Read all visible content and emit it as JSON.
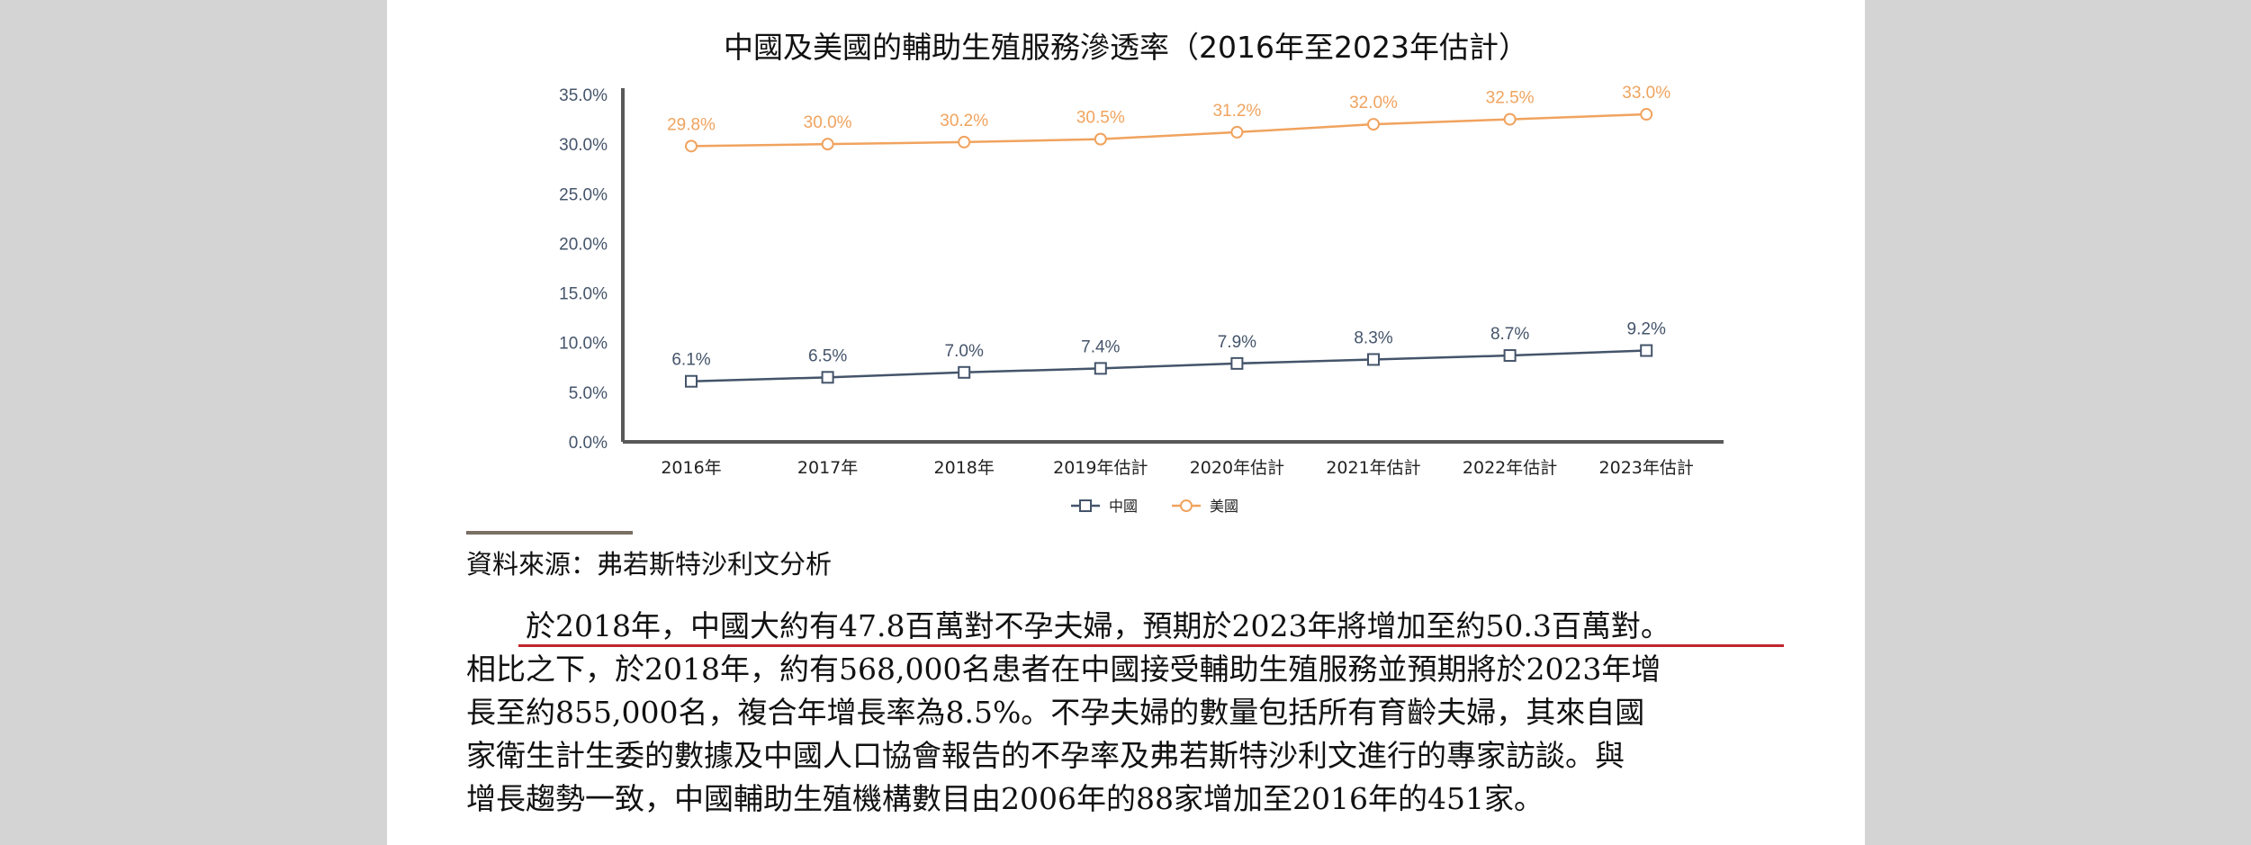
{
  "chart_data": {
    "type": "line",
    "title": "中國及美國的輔助生殖服務滲透率（2016年至2023年估計）",
    "categories": [
      "2016年",
      "2017年",
      "2018年",
      "2019年估計",
      "2020年估計",
      "2021年估計",
      "2022年估計",
      "2023年估計"
    ],
    "y_ticks": [
      "0.0%",
      "5.0%",
      "10.0%",
      "15.0%",
      "20.0%",
      "25.0%",
      "30.0%",
      "35.0%"
    ],
    "ylim": [
      0,
      35
    ],
    "legend_position": "bottom-center",
    "grid": false,
    "series": [
      {
        "name": "中國",
        "marker": "square",
        "color": "#44546a",
        "values": [
          6.1,
          6.5,
          7.0,
          7.4,
          7.9,
          8.3,
          8.7,
          9.2
        ],
        "labels": [
          "6.1%",
          "6.5%",
          "7.0%",
          "7.4%",
          "7.9%",
          "8.3%",
          "8.7%",
          "9.2%"
        ]
      },
      {
        "name": "美國",
        "marker": "circle",
        "color": "#f0a35e",
        "values": [
          29.8,
          30.0,
          30.2,
          30.5,
          31.2,
          32.0,
          32.5,
          33.0
        ],
        "labels": [
          "29.8%",
          "30.0%",
          "30.2%",
          "30.5%",
          "31.2%",
          "32.0%",
          "32.5%",
          "33.0%"
        ]
      }
    ]
  },
  "source": "資料來源：弗若斯特沙利文分析",
  "paragraph": {
    "line1": "於2018年，中國大約有47.8百萬對不孕夫婦，預期於2023年將增加至約50.3百萬對。",
    "line2": "相比之下，於2018年，約有568,000名患者在中國接受輔助生殖服務並預期將於2023年增",
    "line3": "長至約855,000名，複合年增長率為8.5%。不孕夫婦的數量包括所有育齡夫婦，其來自國",
    "line4": "家衛生計生委的數據及中國人口協會報告的不孕率及弗若斯特沙利文進行的專家訪談。與",
    "line5": "增長趨勢一致，中國輔助生殖機構數目由2006年的88家增加至2016年的451家。"
  },
  "colors": {
    "axis": "#595959",
    "tick_text": "#44546a",
    "highlight_underline": "#c0262d"
  }
}
